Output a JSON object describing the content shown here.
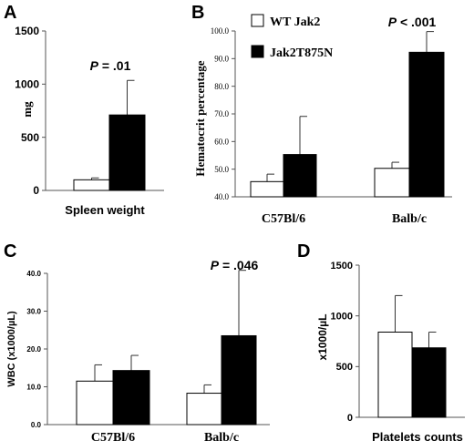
{
  "legend": {
    "items": [
      {
        "label": "WT Jak2",
        "fill": "#ffffff"
      },
      {
        "label": "Jak2T875N",
        "fill": "#000000"
      }
    ]
  },
  "chart_data": [
    {
      "id": "A",
      "type": "bar",
      "letter": "A",
      "title": "",
      "xlabel": "Spleen weight",
      "ylabel": "mg",
      "ylim": [
        0,
        1500
      ],
      "yticks": [
        "0",
        "500",
        "1000",
        "1500"
      ],
      "categories": [
        ""
      ],
      "series": [
        {
          "name": "WT Jak2",
          "values": [
            100
          ],
          "errors": [
            18
          ]
        },
        {
          "name": "Jak2T875N",
          "values": [
            710
          ],
          "errors": [
            325
          ]
        }
      ],
      "pvalues": [
        {
          "prefix": "P",
          "text": " = .01"
        }
      ]
    },
    {
      "id": "B",
      "type": "bar",
      "letter": "B",
      "title": "",
      "xlabel": "",
      "ylabel": "Hematocrit percentage",
      "ylim": [
        40,
        100
      ],
      "yticks": [
        "40.0",
        "50.0",
        "60.0",
        "70.0",
        "80.0",
        "90.0",
        "100.0"
      ],
      "categories": [
        "C57Bl/6",
        "Balb/c"
      ],
      "series": [
        {
          "name": "WT Jak2",
          "values": [
            45.5,
            50.3
          ],
          "errors": [
            2.7,
            2.2
          ]
        },
        {
          "name": "Jak2T875N",
          "values": [
            55.3,
            92.3
          ],
          "errors": [
            13.8,
            7.5
          ]
        }
      ],
      "pvalues": [
        {
          "prefix": "P",
          "text": " < .001"
        }
      ]
    },
    {
      "id": "C",
      "type": "bar",
      "letter": "C",
      "title": "",
      "xlabel": "",
      "ylabel": "WBC (x1000/µL)",
      "ylim": [
        0,
        40
      ],
      "yticks": [
        "0.0",
        "10.0",
        "20.0",
        "30.0",
        "40.0"
      ],
      "categories": [
        "C57Bl/6",
        "Balb/c"
      ],
      "series": [
        {
          "name": "WT Jak2",
          "values": [
            11.5,
            8.3
          ],
          "errors": [
            4.3,
            2.2
          ]
        },
        {
          "name": "Jak2T875N",
          "values": [
            14.3,
            23.5
          ],
          "errors": [
            4.0,
            17.3
          ]
        }
      ],
      "pvalues": [
        {
          "prefix": "P",
          "text": " = .046"
        }
      ]
    },
    {
      "id": "D",
      "type": "bar",
      "letter": "D",
      "title": "",
      "xlabel": "Platelets counts",
      "ylabel": "x1000/µL",
      "ylim": [
        0,
        1500
      ],
      "yticks": [
        "0",
        "500",
        "1000",
        "1500"
      ],
      "categories": [
        ""
      ],
      "series": [
        {
          "name": "WT Jak2",
          "values": [
            840
          ],
          "errors": [
            360
          ]
        },
        {
          "name": "Jak2T875N",
          "values": [
            685
          ],
          "errors": [
            155
          ]
        }
      ],
      "pvalues": []
    }
  ]
}
